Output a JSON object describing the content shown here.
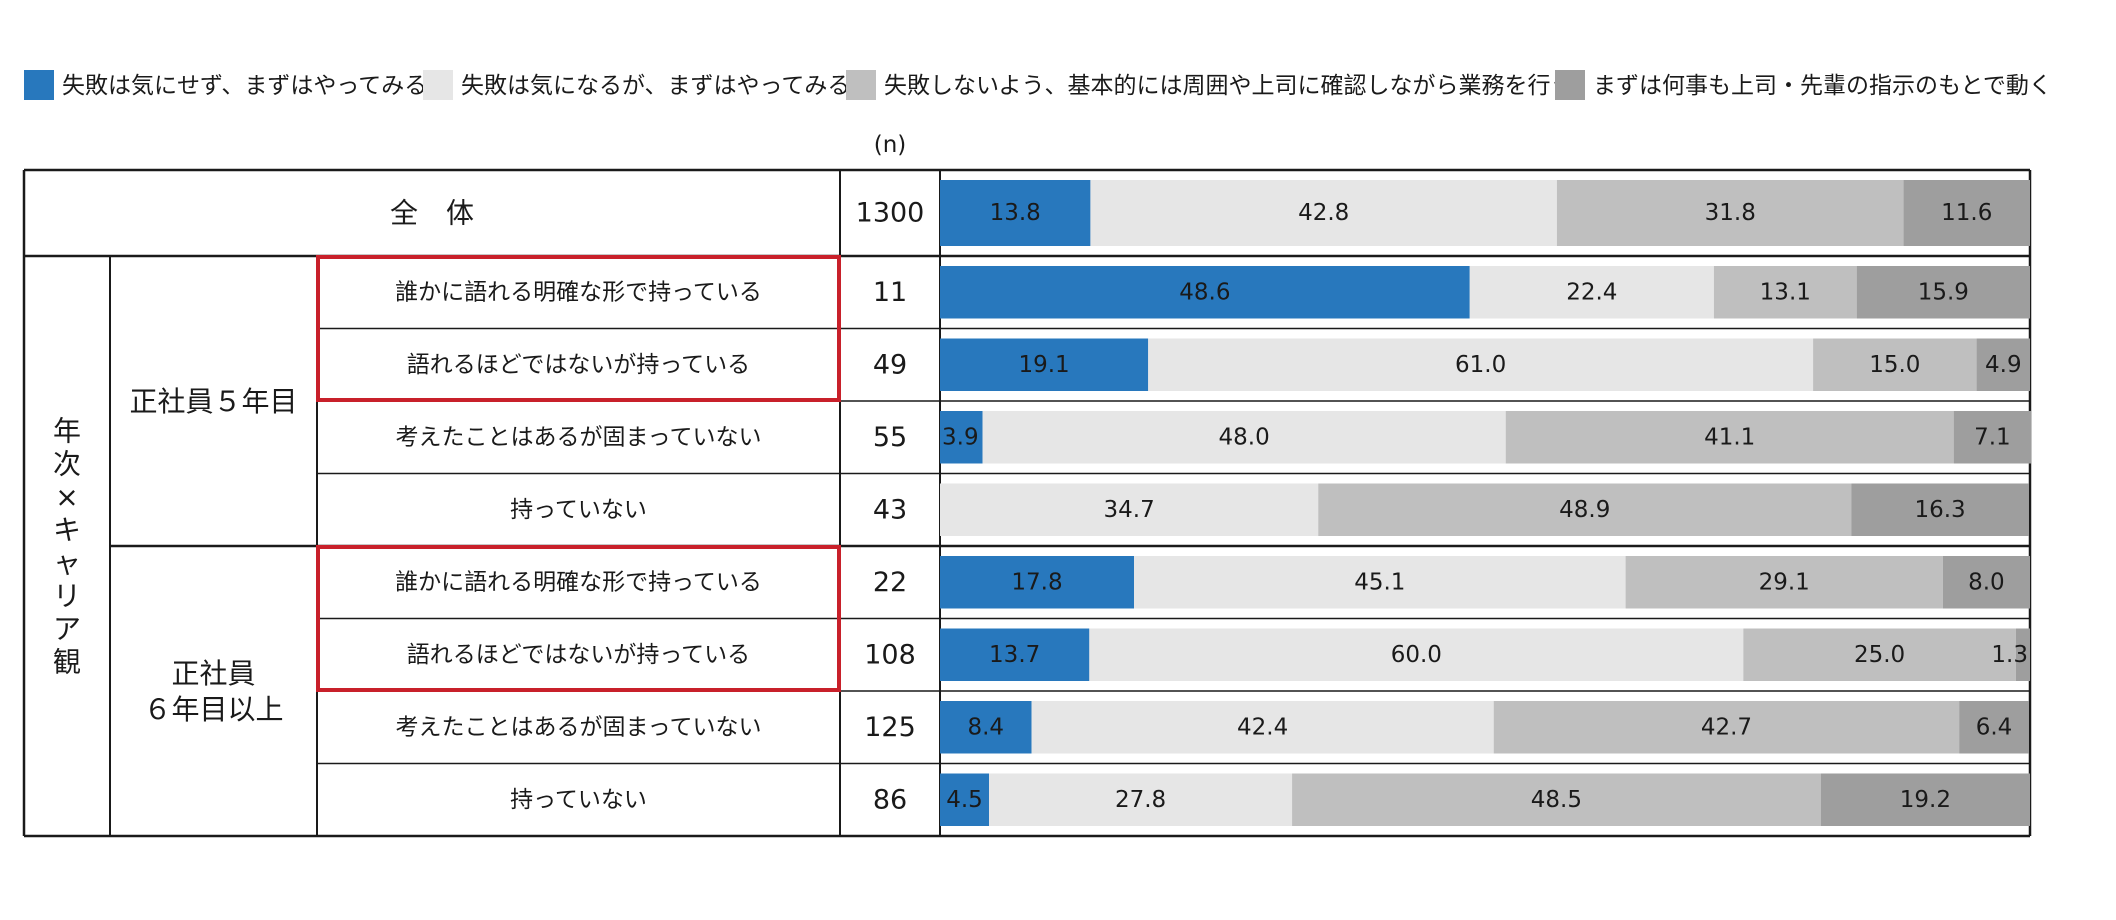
{
  "chart_data": {
    "type": "bar",
    "orientation": "horizontal-stacked-100",
    "legend": [
      {
        "name": "失敗は気にせず、まずはやってみる",
        "color": "#2878bd"
      },
      {
        "name": "失敗は気になるが、まずはやってみる",
        "color": "#e6e6e6"
      },
      {
        "name": "失敗しないよう、基本的には周囲や上司に確認しながら業務を行う",
        "color": "#bfbfbf"
      },
      {
        "name": "まずは何事も上司・先輩の指示のもとで動く",
        "color": "#9e9e9e"
      }
    ],
    "legend_position": "top",
    "n_header": "(n)",
    "overall": {
      "label": "全　体",
      "n": "1300",
      "values": [
        13.8,
        42.8,
        31.8,
        11.6
      ]
    },
    "outer_group_label": "年次×キャリア観",
    "groups": [
      {
        "label": "正社員５年目",
        "rows": [
          {
            "label": "誰かに語れる明確な形で持っている",
            "n": "11",
            "values": [
              48.6,
              22.4,
              13.1,
              15.9
            ],
            "highlighted": true
          },
          {
            "label": "語れるほどではないが持っている",
            "n": "49",
            "values": [
              19.1,
              61.0,
              15.0,
              4.9
            ],
            "highlighted": true
          },
          {
            "label": "考えたことはあるが固まっていない",
            "n": "55",
            "values": [
              3.9,
              48.0,
              41.1,
              7.1
            ],
            "highlighted": false
          },
          {
            "label": "持っていない",
            "n": "43",
            "values": [
              0.0,
              34.7,
              48.9,
              16.3
            ],
            "highlighted": false
          }
        ]
      },
      {
        "label": "正社員\n６年目以上",
        "rows": [
          {
            "label": "誰かに語れる明確な形で持っている",
            "n": "22",
            "values": [
              17.8,
              45.1,
              29.1,
              8.0
            ],
            "highlighted": true
          },
          {
            "label": "語れるほどではないが持っている",
            "n": "108",
            "values": [
              13.7,
              60.0,
              25.0,
              1.3
            ],
            "highlighted": true
          },
          {
            "label": "考えたことはあるが固まっていない",
            "n": "125",
            "values": [
              8.4,
              42.4,
              42.7,
              6.4
            ],
            "highlighted": false
          },
          {
            "label": "持っていない",
            "n": "86",
            "values": [
              4.5,
              27.8,
              48.5,
              19.2
            ],
            "highlighted": false
          }
        ]
      }
    ]
  }
}
